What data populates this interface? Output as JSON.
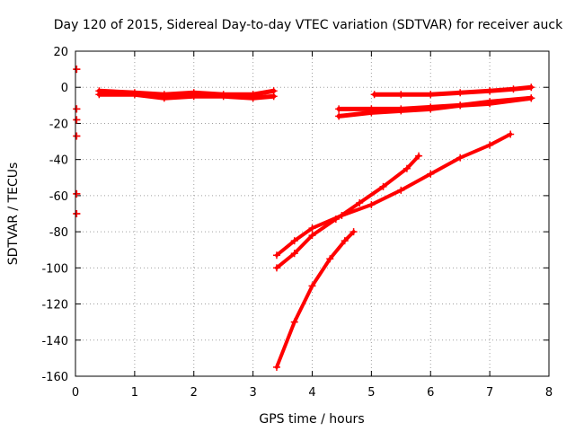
{
  "chart_data": {
    "type": "scatter",
    "title": "Day 120 of 2015, Sidereal Day-to-day VTEC variation (SDTVAR) for receiver auck",
    "xlabel": "GPS time / hours",
    "ylabel": "SDTVAR / TECUs",
    "xlim": [
      0,
      8
    ],
    "ylim": [
      -160,
      20
    ],
    "xticks": [
      "0",
      "1",
      "2",
      "3",
      "4",
      "5",
      "6",
      "7",
      "8"
    ],
    "yticks": [
      "20",
      "0",
      "-20",
      "-40",
      "-60",
      "-80",
      "-100",
      "-120",
      "-140",
      "-160"
    ],
    "grid": true,
    "marker": "plus",
    "color": "#ff0000",
    "series": [
      {
        "segments": [
          {
            "x": [
              0.02,
              0.02
            ],
            "y": [
              10,
              10
            ]
          },
          {
            "x": [
              0.02,
              0.02
            ],
            "y": [
              -12,
              -12
            ]
          },
          {
            "x": [
              0.02,
              0.02
            ],
            "y": [
              -18,
              -18
            ]
          },
          {
            "x": [
              0.02,
              0.02
            ],
            "y": [
              -27,
              -27
            ]
          },
          {
            "x": [
              0.02,
              0.02
            ],
            "y": [
              -59,
              -59
            ]
          },
          {
            "x": [
              0.02,
              0.02
            ],
            "y": [
              -70,
              -70
            ]
          },
          {
            "x": [
              0.4,
              1.0,
              1.5,
              2.0,
              2.5,
              3.0,
              3.35
            ],
            "y": [
              -2,
              -3,
              -4,
              -3,
              -4,
              -4,
              -2
            ],
            "width": 5
          },
          {
            "x": [
              0.4,
              1.0,
              1.5,
              2.0,
              2.5,
              3.0,
              3.35
            ],
            "y": [
              -4,
              -4,
              -6,
              -5,
              -5,
              -6,
              -5
            ],
            "width": 5
          },
          {
            "x": [
              5.05,
              5.5,
              6.0,
              6.5,
              7.0,
              7.4,
              7.7
            ],
            "y": [
              -4,
              -4,
              -4,
              -3,
              -2,
              -1,
              0
            ],
            "width": 5
          },
          {
            "x": [
              4.45,
              5.0,
              5.5,
              6.0,
              6.5,
              7.0,
              7.7
            ],
            "y": [
              -12,
              -12,
              -12,
              -11,
              -10,
              -9,
              -6
            ],
            "width": 5
          },
          {
            "x": [
              4.45,
              5.0,
              5.5,
              6.0,
              6.5,
              7.0,
              7.7
            ],
            "y": [
              -16,
              -14,
              -13,
              -12,
              -10,
              -8,
              -6
            ],
            "width": 5
          },
          {
            "x": [
              3.4,
              3.7,
              4.0,
              4.3,
              4.55,
              4.7
            ],
            "y": [
              -155,
              -130,
              -110,
              -95,
              -85,
              -80
            ],
            "width": 4
          },
          {
            "x": [
              3.4,
              3.7,
              4.0,
              4.4,
              4.8,
              5.2,
              5.6,
              5.8
            ],
            "y": [
              -100,
              -92,
              -82,
              -73,
              -64,
              -55,
              -45,
              -38
            ],
            "width": 4
          },
          {
            "x": [
              3.4,
              3.7,
              4.0,
              4.5,
              5.0,
              5.5,
              6.0,
              6.5,
              7.0,
              7.35
            ],
            "y": [
              -93,
              -85,
              -78,
              -71,
              -65,
              -57,
              -48,
              -39,
              -32,
              -26
            ],
            "width": 4
          }
        ]
      }
    ]
  }
}
